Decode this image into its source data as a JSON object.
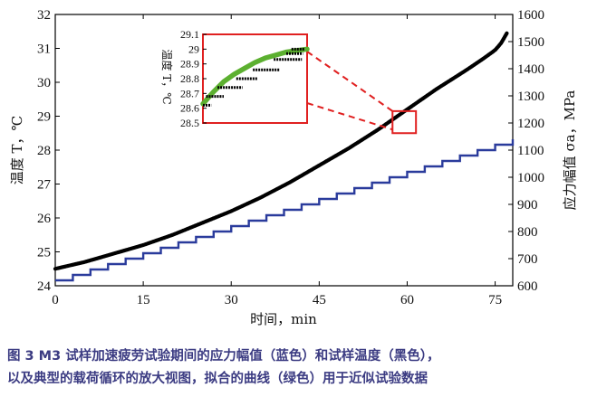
{
  "figure": {
    "caption_line1": "图 3   M3 试样加速疲劳试验期间的应力幅值（蓝色）和试样温度（黑色），",
    "caption_line2": "以及典型的载荷循环的放大视图，拟合的曲线（绿色）用于近似试验数据"
  },
  "colors": {
    "temperature": "#000000",
    "stress": "#2a3b9c",
    "fit": "#5cb030",
    "highlight": "#e02020",
    "caption": "#3b3b82"
  },
  "chart_data": {
    "type": "line",
    "xlabel": "时间，min",
    "ylabel_left": "温度 T，℃",
    "ylabel_right": "应力幅值 σa，MPa",
    "xlim": [
      0,
      78
    ],
    "ylim_left": [
      24,
      32
    ],
    "ylim_right": [
      600,
      1600
    ],
    "x_ticks": [
      "0",
      "15",
      "30",
      "45",
      "60",
      "75"
    ],
    "y_left_ticks": [
      "24",
      "25",
      "26",
      "27",
      "28",
      "29",
      "30",
      "31",
      "32"
    ],
    "y_right_ticks": [
      "600",
      "700",
      "800",
      "900",
      "1000",
      "1100",
      "1200",
      "1300",
      "1400",
      "1500",
      "1600"
    ],
    "grid": false,
    "series": [
      {
        "name": "温度 T",
        "axis": "left",
        "style": "dotted-thick",
        "x": [
          0,
          5,
          10,
          15,
          20,
          25,
          30,
          35,
          40,
          45,
          50,
          55,
          60,
          65,
          70,
          73,
          75,
          76,
          77
        ],
        "y": [
          24.5,
          24.7,
          24.95,
          25.2,
          25.5,
          25.85,
          26.2,
          26.6,
          27.05,
          27.55,
          28.05,
          28.6,
          29.2,
          29.8,
          30.35,
          30.7,
          30.95,
          31.15,
          31.45
        ]
      },
      {
        "name": "应力幅值 σa",
        "axis": "right",
        "style": "step",
        "x": [
          0,
          3,
          6,
          9,
          12,
          15,
          18,
          21,
          24,
          27,
          30,
          33,
          36,
          39,
          42,
          45,
          48,
          51,
          54,
          57,
          60,
          63,
          66,
          69,
          72,
          75,
          78
        ],
        "y": [
          620,
          640,
          660,
          680,
          700,
          720,
          740,
          760,
          780,
          800,
          820,
          840,
          860,
          880,
          900,
          920,
          940,
          960,
          980,
          1000,
          1020,
          1040,
          1060,
          1080,
          1100,
          1120,
          1140
        ]
      }
    ],
    "inset": {
      "ylabel": "温度 T，℃",
      "ylim": [
        28.5,
        29.1
      ],
      "y_ticks": [
        "28.5",
        "28.6",
        "28.7",
        "28.8",
        "28.9",
        "29",
        "29.1"
      ],
      "zoom_region_x": [
        57.5,
        61.5
      ],
      "zoom_region_y": [
        28.5,
        29.15
      ],
      "data_steps": [
        {
          "x": [
            0.0,
            0.08
          ],
          "y": 28.62
        },
        {
          "x": [
            0.03,
            0.2
          ],
          "y": 28.68
        },
        {
          "x": [
            0.14,
            0.38
          ],
          "y": 28.74
        },
        {
          "x": [
            0.32,
            0.52
          ],
          "y": 28.8
        },
        {
          "x": [
            0.48,
            0.74
          ],
          "y": 28.86
        },
        {
          "x": [
            0.68,
            0.95
          ],
          "y": 28.93
        },
        {
          "x": [
            0.8,
            0.96
          ],
          "y": 28.97
        },
        {
          "x": [
            0.85,
            0.98
          ],
          "y": 29.0
        }
      ],
      "fit_curve": {
        "name": "拟合曲线",
        "x": [
          0.0,
          0.1,
          0.2,
          0.3,
          0.4,
          0.5,
          0.6,
          0.7,
          0.8,
          0.9,
          1.0
        ],
        "y": [
          28.63,
          28.71,
          28.78,
          28.83,
          28.87,
          28.91,
          28.94,
          28.96,
          28.98,
          28.99,
          29.0
        ]
      }
    }
  }
}
